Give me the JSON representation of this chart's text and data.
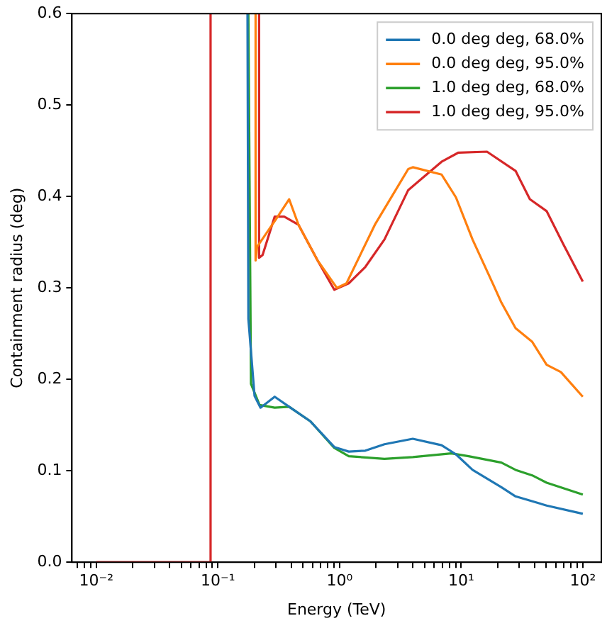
{
  "chart_data": {
    "type": "line",
    "xlabel": "Energy (TeV)",
    "ylabel": "Containment radius (deg)",
    "log": "x",
    "legend": "top right",
    "grid": false,
    "marker": "none",
    "line_style": "solid",
    "xlim": [
      0.0063,
      142
    ],
    "ylim": [
      0,
      0.6
    ],
    "xticks": [
      {
        "value": 0.007,
        "label": null
      },
      {
        "value": 0.008,
        "label": null
      },
      {
        "value": 0.009,
        "label": null
      },
      {
        "value": 0.01,
        "label": "10⁻²"
      },
      {
        "value": 0.02,
        "label": null
      },
      {
        "value": 0.03,
        "label": null
      },
      {
        "value": 0.04,
        "label": null
      },
      {
        "value": 0.05,
        "label": null
      },
      {
        "value": 0.06,
        "label": null
      },
      {
        "value": 0.07,
        "label": null
      },
      {
        "value": 0.08,
        "label": null
      },
      {
        "value": 0.09,
        "label": null
      },
      {
        "value": 0.1,
        "label": "10⁻¹"
      },
      {
        "value": 0.2,
        "label": null
      },
      {
        "value": 0.3,
        "label": null
      },
      {
        "value": 0.4,
        "label": null
      },
      {
        "value": 0.5,
        "label": null
      },
      {
        "value": 0.6,
        "label": null
      },
      {
        "value": 0.7,
        "label": null
      },
      {
        "value": 0.8,
        "label": null
      },
      {
        "value": 0.9,
        "label": null
      },
      {
        "value": 1,
        "label": "10⁰"
      },
      {
        "value": 2,
        "label": null
      },
      {
        "value": 3,
        "label": null
      },
      {
        "value": 4,
        "label": null
      },
      {
        "value": 5,
        "label": null
      },
      {
        "value": 6,
        "label": null
      },
      {
        "value": 7,
        "label": null
      },
      {
        "value": 8,
        "label": null
      },
      {
        "value": 9,
        "label": null
      },
      {
        "value": 10,
        "label": "10¹"
      },
      {
        "value": 20,
        "label": null
      },
      {
        "value": 30,
        "label": null
      },
      {
        "value": 40,
        "label": null
      },
      {
        "value": 50,
        "label": null
      },
      {
        "value": 60,
        "label": null
      },
      {
        "value": 70,
        "label": null
      },
      {
        "value": 80,
        "label": null
      },
      {
        "value": 90,
        "label": null
      },
      {
        "value": 100,
        "label": "10²"
      }
    ],
    "yticks": [
      {
        "value": 0,
        "label": "0.0"
      },
      {
        "value": 0.1,
        "label": "0.1"
      },
      {
        "value": 0.2,
        "label": "0.2"
      },
      {
        "value": 0.3,
        "label": "0.3"
      },
      {
        "value": 0.4,
        "label": "0.4"
      },
      {
        "value": 0.5,
        "label": "0.5"
      },
      {
        "value": 0.6,
        "label": "0.6"
      }
    ],
    "series": [
      {
        "name": "0.0 deg deg, 68.0%",
        "color": "#1f77b4",
        "x": [
          0.175,
          0.178,
          0.2,
          0.224,
          0.293,
          0.385,
          0.577,
          0.905,
          1.19,
          1.63,
          2.34,
          4.0,
          6.9,
          9.06,
          12.4,
          21.4,
          28,
          50.4,
          100
        ],
        "values": [
          0.6,
          0.266,
          0.182,
          0.169,
          0.181,
          0.17,
          0.154,
          0.126,
          0.121,
          0.122,
          0.129,
          0.135,
          0.128,
          0.118,
          0.101,
          0.082,
          0.072,
          0.062,
          0.053
        ]
      },
      {
        "name": "0.0 deg deg, 95.0%",
        "color": "#ff7f0e",
        "x": [
          0.204,
          0.204,
          0.21,
          0.3,
          0.385,
          0.46,
          0.66,
          0.95,
          1.14,
          1.95,
          3.67,
          4.0,
          6.9,
          9.06,
          12.4,
          18.6,
          21.4,
          28,
          38.4,
          50.4,
          66,
          100
        ],
        "values": [
          0.6,
          0.33,
          0.345,
          0.375,
          0.397,
          0.369,
          0.33,
          0.3,
          0.305,
          0.369,
          0.43,
          0.432,
          0.424,
          0.399,
          0.353,
          0.302,
          0.284,
          0.256,
          0.241,
          0.216,
          0.208,
          0.181
        ]
      },
      {
        "name": "1.0 deg deg, 68.0%",
        "color": "#2ca02c",
        "x": [
          0.178,
          0.187,
          0.22,
          0.293,
          0.385,
          0.577,
          0.905,
          1.19,
          2.34,
          4.0,
          8.3,
          11.5,
          21.4,
          28,
          38.4,
          50.4,
          100
        ],
        "values": [
          0.6,
          0.195,
          0.172,
          0.169,
          0.17,
          0.154,
          0.125,
          0.116,
          0.113,
          0.115,
          0.119,
          0.116,
          0.109,
          0.101,
          0.095,
          0.087,
          0.074
        ]
      },
      {
        "name": "1.0 deg deg, 95.0%",
        "color": "#d62728",
        "x": [
          0.01,
          0.087,
          0.087,
          0.15,
          0.218,
          0.218,
          0.233,
          0.293,
          0.351,
          0.46,
          0.66,
          0.905,
          1.19,
          1.63,
          2.34,
          3.67,
          6.9,
          9.5,
          16.3,
          28,
          36.7,
          50.4,
          69,
          100
        ],
        "values": [
          0,
          0,
          0.6,
          null,
          0.6,
          0.333,
          0.336,
          0.378,
          0.378,
          0.369,
          0.33,
          0.298,
          0.305,
          0.323,
          0.353,
          0.407,
          0.438,
          0.448,
          0.449,
          0.428,
          0.397,
          0.384,
          0.348,
          0.307
        ]
      }
    ]
  }
}
